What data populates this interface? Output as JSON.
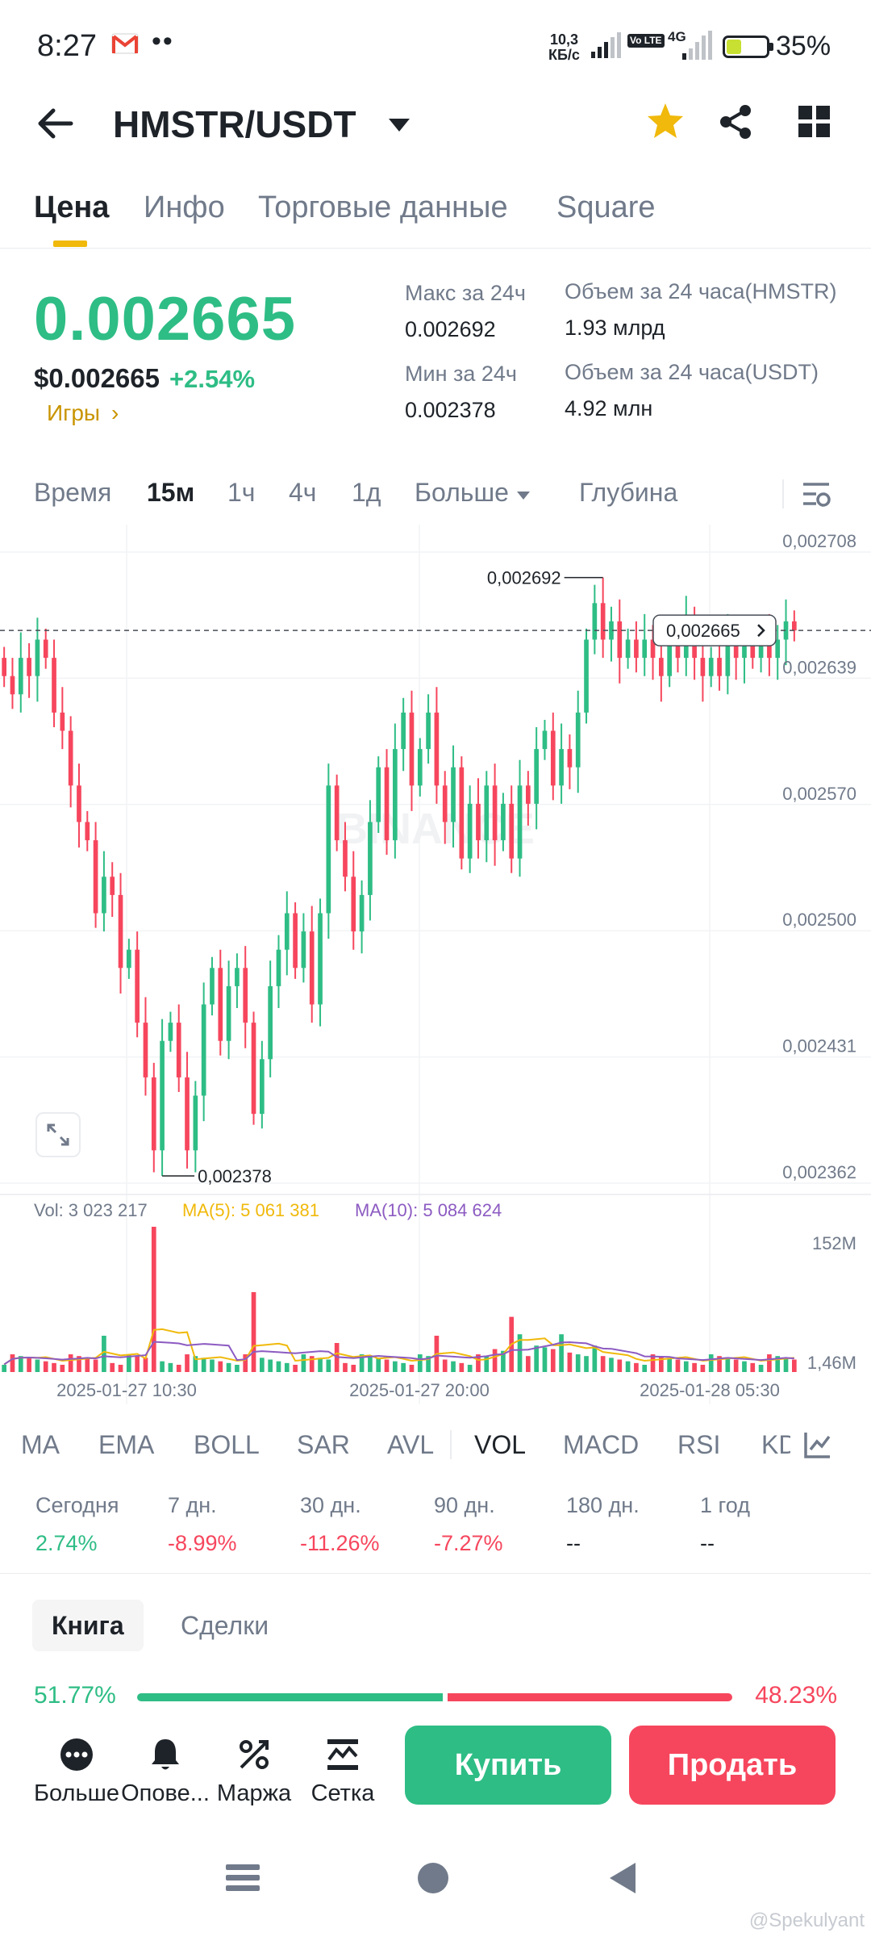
{
  "status_bar": {
    "time": "8:27",
    "net_speed_value": "10,3",
    "net_speed_unit": "КБ/с",
    "volte": "Vo LTE",
    "network": "4G",
    "battery_level": 0.35,
    "battery": "35%"
  },
  "header": {
    "pair": "HMSTR/USDT"
  },
  "tabs": [
    "Цена",
    "Инфо",
    "Торговые данные",
    "Square"
  ],
  "ticker": {
    "last_price": "0.002665",
    "usd_price": "$0.002665",
    "change": "+2.54%",
    "category": "Игры",
    "category_arrow": "›",
    "high_label": "Макс за 24ч",
    "high_value": "0.002692",
    "low_label": "Мин за 24ч",
    "low_value": "0.002378",
    "vol_base_label": "Объем за 24 часа(HMSTR)",
    "vol_base_value": "1.93 млрд",
    "vol_quote_label": "Объем за 24 часа(USDT)",
    "vol_quote_value": "4.92 млн"
  },
  "intervals": {
    "items": [
      "Время",
      "15м",
      "1ч",
      "4ч",
      "1д",
      "Больше",
      "Глубина"
    ],
    "active": "15м"
  },
  "chart_data": {
    "type": "candlestick",
    "interval": "15m",
    "price_axis_ticks": [
      "0,002708",
      "0,002639",
      "0,002570",
      "0,002500",
      "0,002431",
      "0,002362"
    ],
    "ylim": [
      0.002362,
      0.002708
    ],
    "time_labels": [
      "2025-01-27 10:30",
      "2025-01-27 20:00",
      "2025-01-28 05:30"
    ],
    "high_marker": "0,002692",
    "low_marker": "0,002378",
    "last_price_tag": "0,002665",
    "last_price": 0.002665,
    "watermark": "BINANCE",
    "closes": [
      0.00264,
      0.00263,
      0.00265,
      0.00264,
      0.00266,
      0.00265,
      0.00262,
      0.00261,
      0.00258,
      0.00256,
      0.00255,
      0.00251,
      0.00253,
      0.00252,
      0.00248,
      0.00249,
      0.00245,
      0.00242,
      0.00238,
      0.00244,
      0.00245,
      0.00242,
      0.00238,
      0.00241,
      0.00246,
      0.00248,
      0.00244,
      0.00247,
      0.00248,
      0.00245,
      0.0024,
      0.00243,
      0.00247,
      0.00249,
      0.00251,
      0.00248,
      0.0025,
      0.00246,
      0.00251,
      0.00258,
      0.00255,
      0.00253,
      0.0025,
      0.00252,
      0.00256,
      0.00259,
      0.00255,
      0.0026,
      0.00262,
      0.00258,
      0.0026,
      0.00262,
      0.00258,
      0.00256,
      0.00259,
      0.00254,
      0.00257,
      0.00255,
      0.00258,
      0.00255,
      0.00257,
      0.00254,
      0.00258,
      0.00257,
      0.0026,
      0.00261,
      0.00258,
      0.0026,
      0.00259,
      0.00262,
      0.00266,
      0.00268,
      0.00266,
      0.00267,
      0.00265,
      0.00266,
      0.00265,
      0.00266,
      0.00265,
      0.00264,
      0.00266,
      0.00265,
      0.00267,
      0.00265,
      0.00264,
      0.00265,
      0.00264,
      0.00266,
      0.00265,
      0.00266,
      0.00265,
      0.00266,
      0.00265,
      0.00266,
      0.00267,
      0.002665
    ],
    "volume": {
      "vol_label": "Vol: 3 023 217",
      "ma5_label": "MA(5): 5 061 381",
      "ma10_label": "MA(10): 5 084 624",
      "axis_top": "152M",
      "axis_bottom": "1,46M",
      "ma5_color": "#f0b90b",
      "ma10_color": "#8c5bc2"
    },
    "up_color": "#2ebd85",
    "down_color": "#f6465d"
  },
  "indicators": {
    "items": [
      "MA",
      "EMA",
      "BOLL",
      "SAR",
      "AVL",
      "VOL",
      "MACD",
      "RSI",
      "KD"
    ],
    "active": "VOL"
  },
  "performance": [
    {
      "label": "Сегодня",
      "value": "2.74%",
      "tone": "up"
    },
    {
      "label": "7 дн.",
      "value": "-8.99%",
      "tone": "down"
    },
    {
      "label": "30 дн.",
      "value": "-11.26%",
      "tone": "down"
    },
    {
      "label": "90 дн.",
      "value": "-7.27%",
      "tone": "down"
    },
    {
      "label": "180 дн.",
      "value": "--",
      "tone": "flat"
    },
    {
      "label": "1 год",
      "value": "--",
      "tone": "flat"
    }
  ],
  "book": {
    "tabs": [
      "Книга",
      "Сделки"
    ],
    "active": "Книга",
    "bid_ratio": "51.77%",
    "ask_ratio": "48.23%",
    "bid_fraction": 0.5177
  },
  "actions": {
    "more": "Больше",
    "alerts": "Опове...",
    "margin": "Маржа",
    "grid": "Сетка",
    "buy": "Купить",
    "sell": "Продать"
  },
  "watermark": "@Spekulyant"
}
